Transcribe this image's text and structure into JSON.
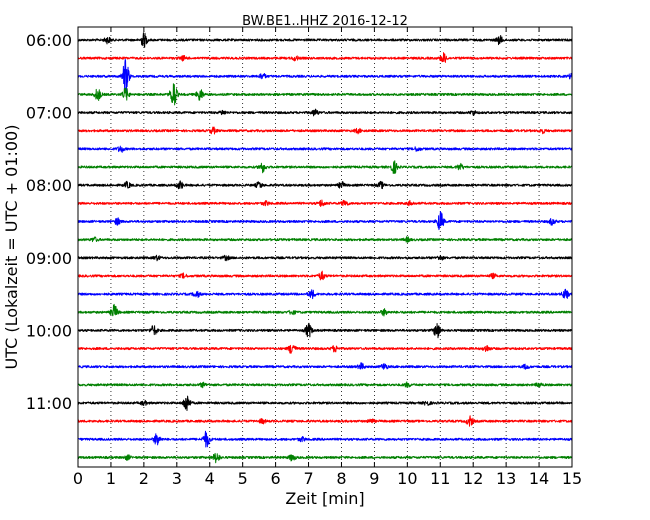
{
  "chart_data": {
    "type": "line",
    "title": "BW.BE1..HHZ 2016-12-12",
    "xlabel": "Zeit  [min]",
    "ylabel": "UTC (Lokalzeit = UTC + 01:00)",
    "xlim": [
      0,
      15
    ],
    "x_ticks": [
      "0",
      "1",
      "2",
      "3",
      "4",
      "5",
      "6",
      "7",
      "8",
      "9",
      "10",
      "11",
      "12",
      "13",
      "14",
      "15"
    ],
    "y_ticks": [
      "06:00",
      "07:00",
      "08:00",
      "09:00",
      "10:00",
      "11:00"
    ],
    "grid": "vertical-dotted",
    "series_colors": [
      "#000000",
      "#ff0000",
      "#0000ff",
      "#008000"
    ],
    "traces": [
      {
        "start": "06:00",
        "color": "#000000",
        "events": [
          [
            2.0,
            7
          ],
          [
            12.8,
            4
          ],
          [
            0.9,
            3
          ]
        ]
      },
      {
        "start": "06:15",
        "color": "#ff0000",
        "events": [
          [
            11.1,
            5
          ],
          [
            6.6,
            2
          ],
          [
            3.2,
            2
          ]
        ]
      },
      {
        "start": "06:30",
        "color": "#0000ff",
        "events": [
          [
            1.45,
            18
          ],
          [
            5.6,
            3
          ],
          [
            15.0,
            3
          ]
        ]
      },
      {
        "start": "06:45",
        "color": "#008000",
        "events": [
          [
            0.6,
            6
          ],
          [
            1.45,
            6
          ],
          [
            2.9,
            14
          ],
          [
            3.7,
            6
          ]
        ]
      },
      {
        "start": "07:00",
        "color": "#000000",
        "events": [
          [
            7.2,
            3
          ],
          [
            12.0,
            2
          ],
          [
            4.4,
            2
          ]
        ]
      },
      {
        "start": "07:15",
        "color": "#ff0000",
        "events": [
          [
            4.1,
            3
          ],
          [
            14.1,
            2
          ],
          [
            8.5,
            2
          ]
        ]
      },
      {
        "start": "07:30",
        "color": "#0000ff",
        "events": [
          [
            1.3,
            3
          ],
          [
            10.3,
            2
          ]
        ]
      },
      {
        "start": "07:45",
        "color": "#008000",
        "events": [
          [
            5.6,
            5
          ],
          [
            9.6,
            6
          ],
          [
            11.6,
            3
          ]
        ]
      },
      {
        "start": "08:00",
        "color": "#000000",
        "events": [
          [
            3.1,
            4
          ],
          [
            1.5,
            3
          ],
          [
            5.5,
            3
          ],
          [
            8.0,
            3
          ],
          [
            9.2,
            3
          ]
        ]
      },
      {
        "start": "08:15",
        "color": "#ff0000",
        "events": [
          [
            7.4,
            3
          ],
          [
            8.1,
            3
          ],
          [
            5.7,
            2
          ],
          [
            10.1,
            2
          ]
        ]
      },
      {
        "start": "08:30",
        "color": "#0000ff",
        "events": [
          [
            11.0,
            10
          ],
          [
            14.4,
            3
          ],
          [
            1.2,
            3
          ]
        ]
      },
      {
        "start": "08:45",
        "color": "#008000",
        "events": [
          [
            0.5,
            2
          ],
          [
            10.0,
            2
          ]
        ]
      },
      {
        "start": "09:00",
        "color": "#000000",
        "events": [
          [
            4.5,
            2
          ],
          [
            2.4,
            2
          ],
          [
            11.0,
            2
          ]
        ]
      },
      {
        "start": "09:15",
        "color": "#ff0000",
        "events": [
          [
            7.4,
            4
          ],
          [
            12.6,
            2
          ],
          [
            3.2,
            2
          ]
        ]
      },
      {
        "start": "09:30",
        "color": "#0000ff",
        "events": [
          [
            14.8,
            5
          ],
          [
            3.6,
            3
          ],
          [
            7.1,
            4
          ]
        ]
      },
      {
        "start": "09:45",
        "color": "#008000",
        "events": [
          [
            1.1,
            7
          ],
          [
            9.3,
            3
          ],
          [
            6.5,
            2
          ]
        ]
      },
      {
        "start": "10:00",
        "color": "#000000",
        "events": [
          [
            7.0,
            7
          ],
          [
            10.9,
            8
          ],
          [
            2.3,
            5
          ]
        ]
      },
      {
        "start": "10:15",
        "color": "#ff0000",
        "events": [
          [
            6.5,
            6
          ],
          [
            7.8,
            3
          ],
          [
            12.4,
            3
          ]
        ]
      },
      {
        "start": "10:30",
        "color": "#0000ff",
        "events": [
          [
            8.6,
            3
          ],
          [
            9.3,
            3
          ],
          [
            13.6,
            2
          ]
        ]
      },
      {
        "start": "10:45",
        "color": "#008000",
        "events": [
          [
            3.8,
            2
          ],
          [
            10.0,
            2
          ],
          [
            14.0,
            2
          ]
        ]
      },
      {
        "start": "11:00",
        "color": "#000000",
        "events": [
          [
            3.3,
            9
          ],
          [
            2.0,
            2
          ],
          [
            10.6,
            2
          ]
        ]
      },
      {
        "start": "11:15",
        "color": "#ff0000",
        "events": [
          [
            11.9,
            5
          ],
          [
            5.6,
            2
          ],
          [
            8.9,
            2
          ]
        ]
      },
      {
        "start": "11:30",
        "color": "#0000ff",
        "events": [
          [
            3.9,
            8
          ],
          [
            2.4,
            6
          ],
          [
            6.8,
            2
          ]
        ]
      },
      {
        "start": "11:45",
        "color": "#008000",
        "events": [
          [
            4.2,
            5
          ],
          [
            6.5,
            3
          ],
          [
            1.5,
            2
          ]
        ]
      }
    ]
  }
}
